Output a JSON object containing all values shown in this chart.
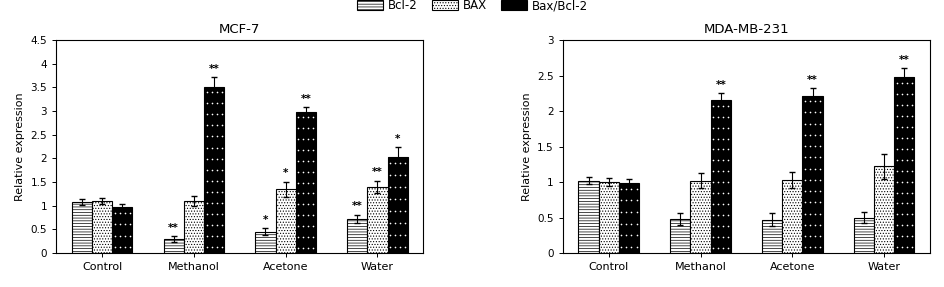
{
  "mcf7": {
    "title": "MCF-7",
    "categories": [
      "Control",
      "Methanol",
      "Acetone",
      "Water"
    ],
    "bcl2": [
      1.08,
      0.3,
      0.45,
      0.72
    ],
    "bcl2_err": [
      0.07,
      0.06,
      0.07,
      0.09
    ],
    "bax": [
      1.1,
      1.1,
      1.35,
      1.4
    ],
    "bax_err": [
      0.07,
      0.1,
      0.16,
      0.13
    ],
    "ratio": [
      0.97,
      3.52,
      2.98,
      2.02
    ],
    "ratio_err": [
      0.07,
      0.2,
      0.1,
      0.22
    ],
    "ylim": [
      0,
      4.5
    ],
    "yticks": [
      0,
      0.5,
      1.0,
      1.5,
      2.0,
      2.5,
      3.0,
      3.5,
      4.0,
      4.5
    ],
    "ylabel": "Relative expression",
    "annotations": {
      "bcl2": [
        "",
        "**",
        "*",
        "**"
      ],
      "bax": [
        "",
        "",
        "*",
        "**"
      ],
      "ratio": [
        "",
        "**",
        "**",
        "*"
      ]
    }
  },
  "mda": {
    "title": "MDA-MB-231",
    "categories": [
      "Control",
      "Methanol",
      "Acetone",
      "Water"
    ],
    "bcl2": [
      1.02,
      0.48,
      0.47,
      0.5
    ],
    "bcl2_err": [
      0.05,
      0.09,
      0.09,
      0.08
    ],
    "bax": [
      1.0,
      1.02,
      1.03,
      1.22
    ],
    "bax_err": [
      0.05,
      0.11,
      0.11,
      0.18
    ],
    "ratio": [
      0.99,
      2.15,
      2.22,
      2.48
    ],
    "ratio_err": [
      0.05,
      0.1,
      0.1,
      0.13
    ],
    "ylim": [
      0,
      3.0
    ],
    "yticks": [
      0,
      0.5,
      1.0,
      1.5,
      2.0,
      2.5,
      3.0
    ],
    "ylabel": "Relative expression",
    "annotations": {
      "bcl2": [
        "",
        "",
        "",
        ""
      ],
      "bax": [
        "",
        "",
        "",
        ""
      ],
      "ratio": [
        "",
        "**",
        "**",
        "**"
      ]
    }
  },
  "bar_width": 0.22,
  "legend_labels": [
    "Bcl-2",
    "BAX",
    "Bax/Bcl-2"
  ],
  "background": "#ffffff"
}
